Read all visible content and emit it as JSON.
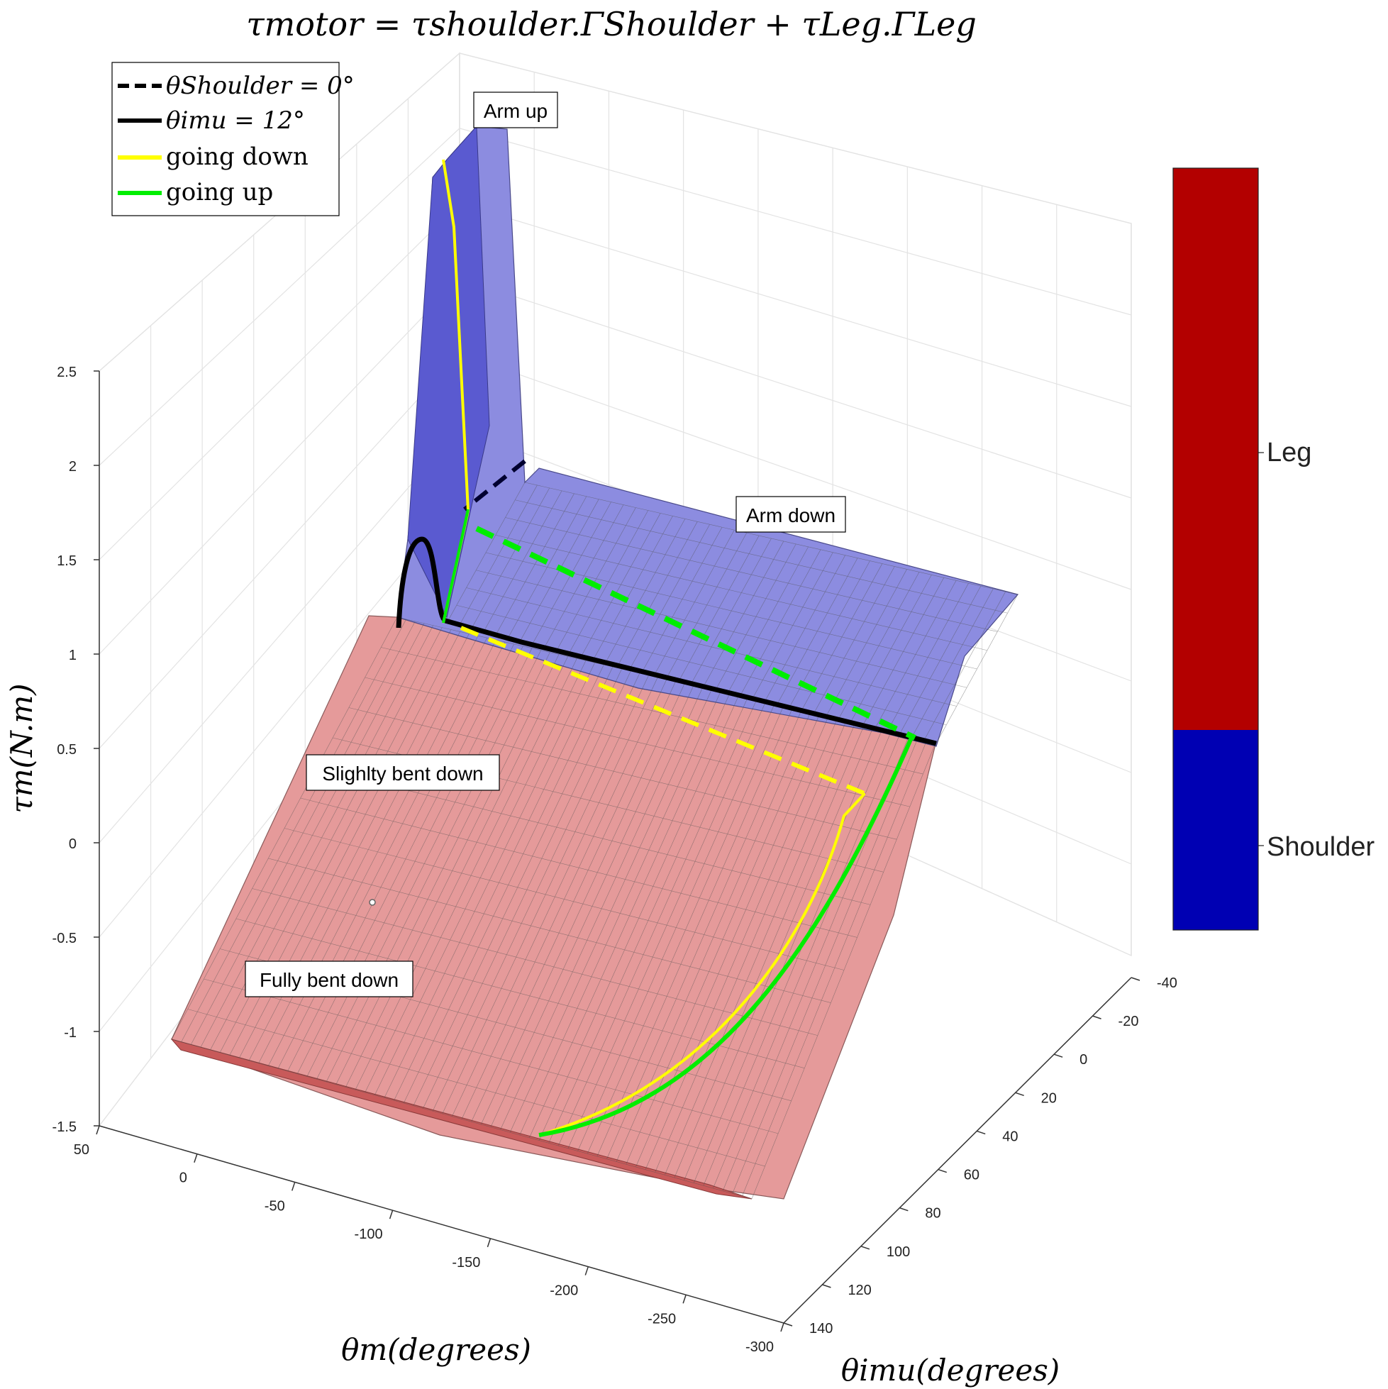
{
  "chart_data": {
    "type": "surface",
    "title": "τmotor = τshoulder.ΓShoulder + τLeg.ΓLeg",
    "xlabel": "θm(degrees)",
    "ylabel": "θimu(degrees)",
    "zlabel": "τm(N.m)",
    "x_ticks": [
      "50",
      "0",
      "-50",
      "-100",
      "-150",
      "-200",
      "-250",
      "-300"
    ],
    "y_ticks": [
      "-40",
      "-20",
      "0",
      "20",
      "40",
      "60",
      "80",
      "100",
      "120",
      "140"
    ],
    "z_ticks": [
      "2.5",
      "2",
      "1.5",
      "1",
      "0.5",
      "0",
      "-0.5",
      "-1",
      "-1.5"
    ],
    "xlim": [
      -300,
      50
    ],
    "ylim": [
      -40,
      140
    ],
    "zlim": [
      -1.5,
      2.5
    ],
    "grid": true,
    "legend_position": "top-left",
    "legend": [
      {
        "label": "θShoulder = 0°",
        "style": "dashed",
        "color": "#000000"
      },
      {
        "label": "θimu = 12°",
        "style": "solid",
        "color": "#000000"
      },
      {
        "label": "going down",
        "style": "solid",
        "color": "#ffff00"
      },
      {
        "label": "going up",
        "style": "solid",
        "color": "#00ff00"
      }
    ],
    "annotations": [
      "Arm up",
      "Arm down",
      "Slighlty bent down",
      "Fully bent down"
    ],
    "colorbar": {
      "labels": [
        "Leg",
        "Shoulder"
      ],
      "colors": [
        "#b30000",
        "#0000b3"
      ]
    },
    "surface_regions": [
      {
        "name": "Shoulder",
        "color": "#8c8ce0"
      },
      {
        "name": "Leg",
        "color": "#e59a9a"
      }
    ],
    "series": [
      {
        "name": "θShoulder = 0°",
        "theta_imu": [
          12,
          12,
          12,
          12
        ],
        "theta_m": [
          -5,
          -60,
          -160,
          -300
        ],
        "tau": [
          1.9,
          1.55,
          1.2,
          0.9
        ]
      },
      {
        "name": "θimu = 12°",
        "theta_imu": [
          12,
          12,
          12,
          12,
          12
        ],
        "theta_m": [
          40,
          25,
          0,
          -100,
          -300
        ],
        "tau": [
          1.1,
          1.55,
          1.15,
          0.95,
          0.5
        ]
      },
      {
        "name": "going down",
        "theta_imu": [
          -25,
          -5,
          0,
          0,
          5,
          60,
          120,
          140
        ],
        "theta_m": [
          0,
          -5,
          -5,
          -20,
          -150,
          -270,
          -290,
          -300
        ],
        "tau": [
          2.4,
          1.7,
          1.15,
          1.1,
          0.95,
          0.45,
          -0.5,
          -1.4
        ]
      },
      {
        "name": "going up",
        "theta_imu": [
          140,
          120,
          60,
          12,
          5,
          0
        ],
        "theta_m": [
          -300,
          -290,
          -270,
          -300,
          -150,
          -5
        ],
        "tau": [
          -1.4,
          -0.5,
          0.45,
          0.55,
          1.2,
          1.55
        ]
      }
    ]
  }
}
